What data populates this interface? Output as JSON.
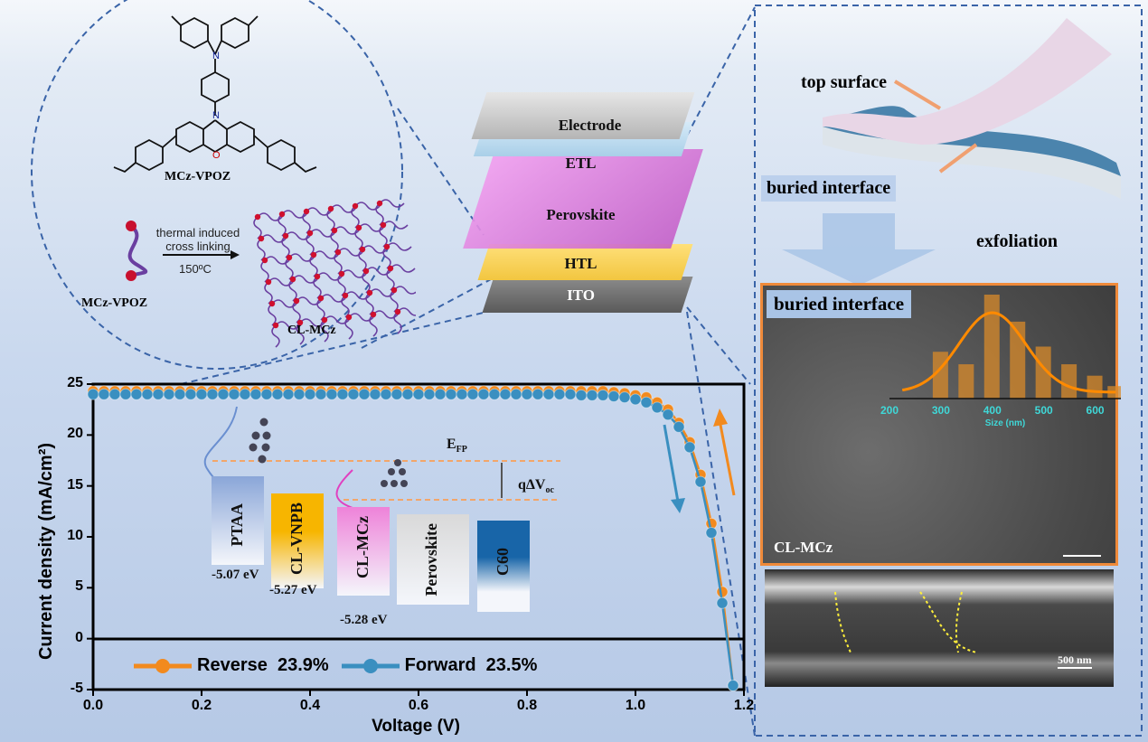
{
  "molecule": {
    "name_top": "MCz-VPOZ",
    "name_monomer": "MCz-VPOZ",
    "name_network": "CL-MCz",
    "arrow_line1": "thermal induced",
    "arrow_line2": "cross linking",
    "arrow_temp": "150ºC"
  },
  "stack": {
    "layers": [
      "Electrode",
      "ETL",
      "Perovskite",
      "HTL",
      "ITO"
    ]
  },
  "right_panel": {
    "top_surface": "top surface",
    "buried_interface_label": "buried interface",
    "exfoliation": "exfoliation",
    "sem_title": "buried interface",
    "sem_sample": "CL-MCz",
    "cross_section_scale": "500 nm"
  },
  "histogram": {
    "xlabel": "Size (nm)",
    "ticks": [
      200,
      300,
      400,
      500,
      600
    ],
    "bins": [
      300,
      350,
      400,
      450,
      500,
      550,
      600,
      640
    ],
    "counts": [
      0.45,
      0.33,
      1.0,
      0.74,
      0.5,
      0.33,
      0.22,
      0.12
    ]
  },
  "energy_diagram": {
    "materials": [
      "PTAA",
      "CL-VNPB",
      "CL-MCz",
      "Perovskite",
      "C60"
    ],
    "levels": [
      "-5.07 eV",
      "-5.27 eV",
      "-5.28 eV"
    ],
    "efp": "E",
    "efp_sub": "FP",
    "dvoc": "qΔV",
    "dvoc_sub": "oc"
  },
  "colors": {
    "reverse": "#f28a1e",
    "forward": "#3a8fc0",
    "ptaa": "#8aa6d8",
    "vnpb": "#f7b500",
    "mcz": "#ee82d9",
    "perovskite": "#d9d9d9",
    "c60": "#1865a8",
    "frame": "#2a4d8f",
    "sem_border": "#ef8a3a"
  },
  "chart_data": {
    "type": "line",
    "xlabel": "Voltage (V)",
    "ylabel": "Current density (mA/cm²)",
    "xlim": [
      0,
      1.2
    ],
    "ylim": [
      -5,
      25
    ],
    "xticks": [
      "0.0",
      "0.2",
      "0.4",
      "0.6",
      "0.8",
      "1.0",
      "1.2"
    ],
    "yticks": [
      "-5",
      "0",
      "5",
      "10",
      "15",
      "20",
      "25"
    ],
    "legend_placement": "bottom",
    "x": [
      0,
      0.02,
      0.04,
      0.06,
      0.08,
      0.1,
      0.12,
      0.14,
      0.16,
      0.18,
      0.2,
      0.22,
      0.24,
      0.26,
      0.28,
      0.3,
      0.32,
      0.34,
      0.36,
      0.38,
      0.4,
      0.42,
      0.44,
      0.46,
      0.48,
      0.5,
      0.52,
      0.54,
      0.56,
      0.58,
      0.6,
      0.62,
      0.64,
      0.66,
      0.68,
      0.7,
      0.72,
      0.74,
      0.76,
      0.78,
      0.8,
      0.82,
      0.84,
      0.86,
      0.88,
      0.9,
      0.92,
      0.94,
      0.96,
      0.98,
      1.0,
      1.02,
      1.04,
      1.06,
      1.08,
      1.1,
      1.12,
      1.14,
      1.16,
      1.18
    ],
    "series": [
      {
        "name": "Reverse",
        "label": "Reverse  23.9%",
        "values": [
          24.3,
          24.3,
          24.3,
          24.3,
          24.3,
          24.3,
          24.3,
          24.3,
          24.3,
          24.3,
          24.3,
          24.3,
          24.3,
          24.3,
          24.3,
          24.3,
          24.3,
          24.3,
          24.3,
          24.3,
          24.3,
          24.3,
          24.3,
          24.3,
          24.3,
          24.3,
          24.3,
          24.3,
          24.3,
          24.3,
          24.3,
          24.3,
          24.3,
          24.3,
          24.3,
          24.3,
          24.3,
          24.3,
          24.3,
          24.3,
          24.3,
          24.3,
          24.3,
          24.3,
          24.3,
          24.3,
          24.3,
          24.3,
          24.2,
          24.1,
          23.9,
          23.7,
          23.2,
          22.5,
          21.2,
          19.3,
          16.1,
          11.3,
          4.6,
          -4.6
        ]
      },
      {
        "name": "Forward",
        "label": "Forward  23.5%",
        "values": [
          24.0,
          24.0,
          24.0,
          24.0,
          24.0,
          24.0,
          24.0,
          24.0,
          24.0,
          24.0,
          24.0,
          24.0,
          24.0,
          24.0,
          24.0,
          24.0,
          24.0,
          24.0,
          24.0,
          24.0,
          24.0,
          24.0,
          24.0,
          24.0,
          24.0,
          24.0,
          24.0,
          24.0,
          24.0,
          24.0,
          24.0,
          24.0,
          24.0,
          24.0,
          24.0,
          24.0,
          24.0,
          24.0,
          24.0,
          24.0,
          24.0,
          24.0,
          24.0,
          24.0,
          24.0,
          23.9,
          23.9,
          23.9,
          23.8,
          23.7,
          23.5,
          23.2,
          22.7,
          22.0,
          20.8,
          18.8,
          15.4,
          10.4,
          3.5,
          -4.6
        ]
      }
    ]
  }
}
